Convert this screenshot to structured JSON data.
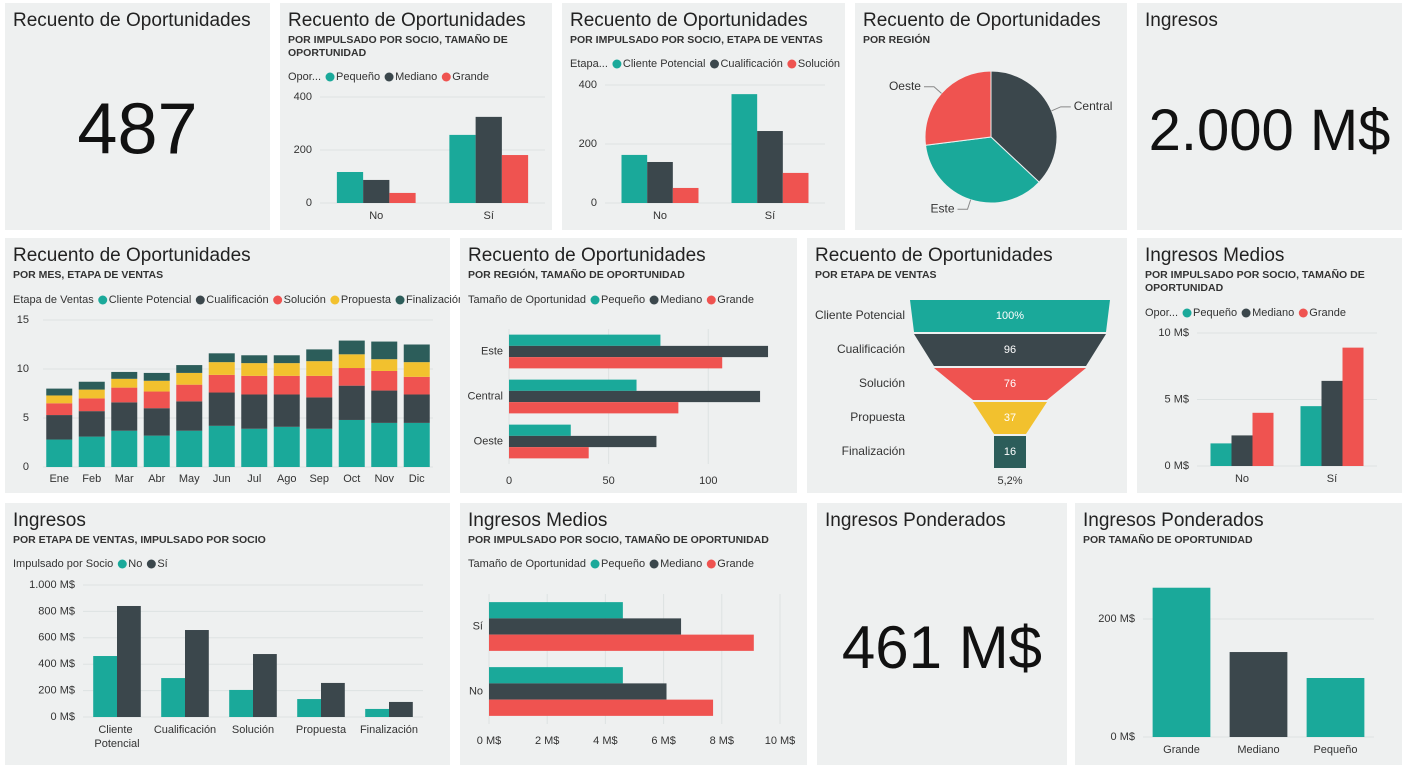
{
  "chart_data": [
    {
      "type": "card",
      "title": "Recuento de Oportunidades",
      "value": 487
    },
    {
      "type": "bar",
      "title": "Recuento de Oportunidades",
      "subtitle": "POR IMPULSADO POR SOCIO, TAMAÑO DE OPORTUNIDAD",
      "legend_title": "Opor...",
      "categories": [
        "No",
        "Sí"
      ],
      "series": [
        {
          "name": "Pequeño",
          "color": "#1aa99a",
          "values": [
            117,
            257
          ]
        },
        {
          "name": "Mediano",
          "color": "#3b474c",
          "values": [
            87,
            325
          ]
        },
        {
          "name": "Grande",
          "color": "#ef5350",
          "values": [
            38,
            181
          ]
        }
      ],
      "ylim": [
        0,
        400
      ],
      "yticks": [
        0,
        200,
        400
      ],
      "grid": true
    },
    {
      "type": "bar",
      "title": "Recuento de Oportunidades",
      "subtitle": "POR IMPULSADO POR SOCIO, ETAPA DE VENTAS",
      "legend_title": "Etapa...",
      "categories": [
        "No",
        "Sí"
      ],
      "series": [
        {
          "name": "Cliente Potencial",
          "color": "#1aa99a",
          "values": [
            163,
            369
          ]
        },
        {
          "name": "Cualificación",
          "color": "#3b474c",
          "values": [
            139,
            244
          ]
        },
        {
          "name": "Solución",
          "color": "#ef5350",
          "values": [
            51,
            102
          ]
        }
      ],
      "ylim": [
        0,
        400
      ],
      "yticks": [
        0,
        200,
        400
      ],
      "grid": true
    },
    {
      "type": "pie",
      "title": "Recuento de Oportunidades",
      "subtitle": "POR REGIÓN",
      "categories": [
        "Central",
        "Este",
        "Oeste"
      ],
      "values": [
        37,
        36,
        27
      ],
      "colors": [
        "#3b474c",
        "#1aa99a",
        "#ef5350"
      ]
    },
    {
      "type": "card",
      "title": "Ingresos",
      "value": "2.000 M$"
    },
    {
      "type": "stacked",
      "title": "Recuento de Oportunidades",
      "subtitle": "POR MES, ETAPA DE VENTAS",
      "legend_title": "Etapa de Ventas",
      "categories": [
        "Ene",
        "Feb",
        "Mar",
        "Abr",
        "May",
        "Jun",
        "Jul",
        "Ago",
        "Sep",
        "Oct",
        "Nov",
        "Dic"
      ],
      "series": [
        {
          "name": "Cliente Potencial",
          "color": "#1aa99a",
          "values": [
            2.8,
            3.1,
            3.7,
            3.2,
            3.7,
            4.2,
            3.9,
            4.1,
            3.9,
            4.8,
            4.5,
            4.5
          ]
        },
        {
          "name": "Cualificación",
          "color": "#3b474c",
          "values": [
            2.5,
            2.6,
            2.9,
            2.8,
            3.0,
            3.4,
            3.5,
            3.3,
            3.2,
            3.5,
            3.3,
            2.9
          ]
        },
        {
          "name": "Solución",
          "color": "#ef5350",
          "values": [
            1.2,
            1.3,
            1.5,
            1.7,
            1.7,
            1.8,
            1.9,
            1.9,
            2.2,
            1.8,
            2.0,
            1.8
          ]
        },
        {
          "name": "Propuesta",
          "color": "#f2c12e",
          "values": [
            0.8,
            0.9,
            0.9,
            1.1,
            1.2,
            1.3,
            1.3,
            1.3,
            1.5,
            1.4,
            1.2,
            1.5
          ]
        },
        {
          "name": "Finalización",
          "color": "#2c5d5a",
          "values": [
            0.7,
            0.8,
            0.7,
            0.8,
            0.8,
            0.9,
            0.8,
            0.8,
            1.2,
            1.4,
            1.8,
            1.8
          ]
        }
      ],
      "ylim": [
        0,
        15
      ],
      "yticks": [
        0,
        5,
        10,
        15
      ],
      "grid": true
    },
    {
      "type": "hbar",
      "title": "Recuento de Oportunidades",
      "subtitle": "POR REGIÓN, TAMAÑO DE OPORTUNIDAD",
      "legend_title": "Tamaño de Oportunidad",
      "categories": [
        "Este",
        "Central",
        "Oeste"
      ],
      "series": [
        {
          "name": "Pequeño",
          "color": "#1aa99a",
          "values": [
            76,
            64,
            31
          ]
        },
        {
          "name": "Mediano",
          "color": "#3b474c",
          "values": [
            130,
            126,
            74
          ]
        },
        {
          "name": "Grande",
          "color": "#ef5350",
          "values": [
            107,
            85,
            40
          ]
        }
      ],
      "xlim": [
        0,
        135
      ],
      "xticks": [
        0,
        50,
        100
      ],
      "grid": true
    },
    {
      "type": "funnel",
      "title": "Recuento de Oportunidades",
      "subtitle": "POR ETAPA DE VENTAS",
      "categories": [
        "Cliente Potencial",
        "Cualificación",
        "Solución",
        "Propuesta",
        "Finalización"
      ],
      "values": [
        100,
        96,
        76,
        37,
        16
      ],
      "value_labels": [
        "100%",
        "96",
        "76",
        "37",
        "16"
      ],
      "colors": [
        "#1aa99a",
        "#3b474c",
        "#ef5350",
        "#f2c12e",
        "#2c5d5a"
      ],
      "footnote": "5,2%"
    },
    {
      "type": "bar",
      "title": "Ingresos Medios",
      "subtitle": "POR IMPULSADO POR SOCIO, TAMAÑO DE OPORTUNIDAD",
      "legend_title": "Opor...",
      "categories": [
        "No",
        "Sí"
      ],
      "series": [
        {
          "name": "Pequeño",
          "color": "#1aa99a",
          "values": [
            1.7,
            4.5
          ]
        },
        {
          "name": "Mediano",
          "color": "#3b474c",
          "values": [
            2.3,
            6.4
          ]
        },
        {
          "name": "Grande",
          "color": "#ef5350",
          "values": [
            4.0,
            8.9
          ]
        }
      ],
      "ylim": [
        0,
        10
      ],
      "yticks": [
        {
          "value": 0,
          "label": "0 M$"
        },
        {
          "value": 5,
          "label": "5 M$"
        },
        {
          "value": 10,
          "label": "10 M$"
        }
      ],
      "grid": true
    },
    {
      "type": "bar",
      "title": "Ingresos",
      "subtitle": "POR ETAPA DE VENTAS, IMPULSADO POR SOCIO",
      "legend_title": "Impulsado por Socio",
      "categories": [
        "Cliente Potencial",
        "Cualificación",
        "Solución",
        "Propuesta",
        "Finalización"
      ],
      "series": [
        {
          "name": "No",
          "color": "#1aa99a",
          "values": [
            462,
            295,
            205,
            136,
            61
          ]
        },
        {
          "name": "Sí",
          "color": "#3b474c",
          "values": [
            841,
            659,
            477,
            258,
            114
          ]
        }
      ],
      "ylim": [
        0,
        1000
      ],
      "yticks": [
        {
          "value": 0,
          "label": "0 M$"
        },
        {
          "value": 200,
          "label": "200 M$"
        },
        {
          "value": 400,
          "label": "400 M$"
        },
        {
          "value": 600,
          "label": "600 M$"
        },
        {
          "value": 800,
          "label": "800 M$"
        },
        {
          "value": 1000,
          "label": "1.000 M$"
        }
      ],
      "grid": true
    },
    {
      "type": "hbar",
      "title": "Ingresos Medios",
      "subtitle": "POR IMPULSADO POR SOCIO, TAMAÑO DE OPORTUNIDAD",
      "legend_title": "Tamaño de Oportunidad",
      "categories": [
        "Sí",
        "No"
      ],
      "series": [
        {
          "name": "Pequeño",
          "color": "#1aa99a",
          "values": [
            4.6,
            4.6
          ]
        },
        {
          "name": "Mediano",
          "color": "#3b474c",
          "values": [
            6.6,
            6.1
          ]
        },
        {
          "name": "Grande",
          "color": "#ef5350",
          "values": [
            9.1,
            7.7
          ]
        }
      ],
      "xlim": [
        0,
        10
      ],
      "xticks": [
        {
          "value": 0,
          "label": "0 M$"
        },
        {
          "value": 2,
          "label": "2 M$"
        },
        {
          "value": 4,
          "label": "4 M$"
        },
        {
          "value": 6,
          "label": "6 M$"
        },
        {
          "value": 8,
          "label": "8 M$"
        },
        {
          "value": 10,
          "label": "10 M$"
        }
      ],
      "grid": true
    },
    {
      "type": "card",
      "title": "Ingresos Ponderados",
      "value": "461 M$"
    },
    {
      "type": "bar",
      "title": "Ingresos Ponderados",
      "subtitle": "POR TAMAÑO DE OPORTUNIDAD",
      "categories": [
        "Grande",
        "Mediano",
        "Pequeño"
      ],
      "values": [
        253,
        144,
        100
      ],
      "colors": [
        "#1aa99a",
        "#3b474c",
        "#1aa99a"
      ],
      "ylim": [
        0,
        300
      ],
      "yticks": [
        {
          "value": 0,
          "label": "0 M$"
        },
        {
          "value": 200,
          "label": "200 M$"
        }
      ],
      "grid": true
    }
  ]
}
